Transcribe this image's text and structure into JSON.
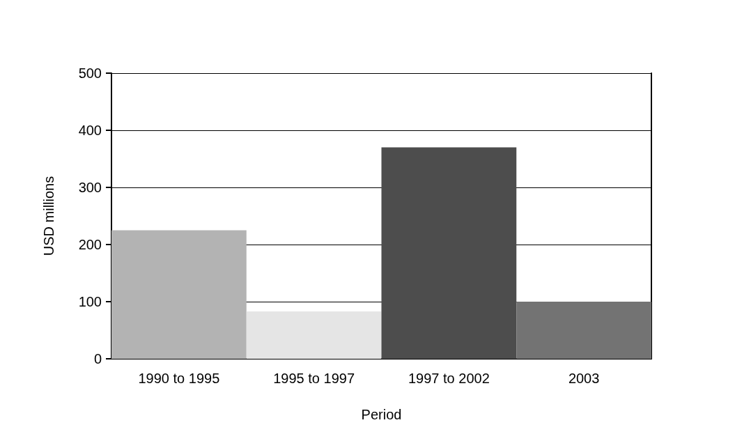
{
  "chart_data": {
    "type": "bar",
    "xlabel": "Period",
    "ylabel": "USD millions",
    "categories": [
      "1990 to 1995",
      "1995 to 1997",
      "1997 to 2002",
      "2003"
    ],
    "values": [
      225,
      83,
      370,
      100
    ],
    "colors": [
      "#b3b3b3",
      "#e5e5e5",
      "#4d4d4d",
      "#737373"
    ],
    "ylim": [
      0,
      500
    ],
    "yticks": [
      0,
      100,
      200,
      300,
      400,
      500
    ],
    "grid": "y"
  }
}
